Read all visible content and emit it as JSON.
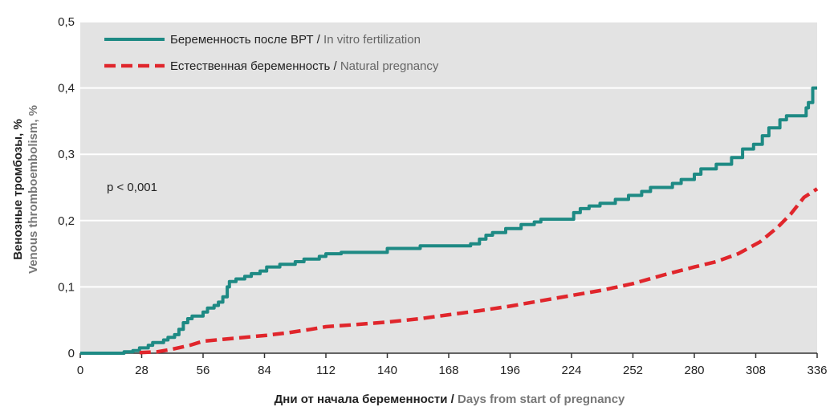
{
  "chart_data": {
    "type": "line",
    "title": "",
    "xlabel_ru": "Дни от начала беременности",
    "xlabel_sep": " / ",
    "xlabel_en": "Days from start of pregnancy",
    "ylabel_ru": "Венозные тромбозы, %",
    "ylabel_en": "Venous thromboembolism, %",
    "xlim": [
      0,
      336
    ],
    "ylim": [
      0,
      0.5
    ],
    "x_ticks": [
      "0",
      "28",
      "56",
      "84",
      "112",
      "140",
      "168",
      "196",
      "224",
      "252",
      "280",
      "308",
      "336"
    ],
    "y_ticks": [
      "0",
      "0,1",
      "0,2",
      "0,3",
      "0,4",
      "0,5"
    ],
    "grid": "horizontal",
    "background": "#e3e3e3",
    "legend_position": "top-left",
    "annotation": "p < 0,001",
    "series": [
      {
        "name_ru": "Беременность после ВРТ",
        "name_sep": " / ",
        "name_en": "In vitro fertilization",
        "color": "#1e8a84",
        "style": "solid",
        "step": true,
        "points": [
          [
            0,
            0
          ],
          [
            18,
            0
          ],
          [
            20,
            0.002
          ],
          [
            24,
            0.004
          ],
          [
            27,
            0.008
          ],
          [
            31,
            0.012
          ],
          [
            33,
            0.016
          ],
          [
            38,
            0.02
          ],
          [
            40,
            0.024
          ],
          [
            43,
            0.028
          ],
          [
            45,
            0.036
          ],
          [
            47,
            0.046
          ],
          [
            49,
            0.052
          ],
          [
            51,
            0.056
          ],
          [
            56,
            0.062
          ],
          [
            58,
            0.068
          ],
          [
            61,
            0.072
          ],
          [
            63,
            0.077
          ],
          [
            65,
            0.085
          ],
          [
            67,
            0.1
          ],
          [
            68,
            0.108
          ],
          [
            71,
            0.112
          ],
          [
            75,
            0.116
          ],
          [
            78,
            0.12
          ],
          [
            82,
            0.124
          ],
          [
            85,
            0.13
          ],
          [
            91,
            0.134
          ],
          [
            98,
            0.138
          ],
          [
            102,
            0.142
          ],
          [
            109,
            0.146
          ],
          [
            112,
            0.15
          ],
          [
            119,
            0.152
          ],
          [
            140,
            0.158
          ],
          [
            155,
            0.162
          ],
          [
            178,
            0.165
          ],
          [
            182,
            0.172
          ],
          [
            185,
            0.178
          ],
          [
            188,
            0.182
          ],
          [
            194,
            0.188
          ],
          [
            201,
            0.194
          ],
          [
            207,
            0.198
          ],
          [
            210,
            0.202
          ],
          [
            225,
            0.212
          ],
          [
            228,
            0.218
          ],
          [
            232,
            0.222
          ],
          [
            237,
            0.226
          ],
          [
            244,
            0.232
          ],
          [
            250,
            0.238
          ],
          [
            256,
            0.244
          ],
          [
            260,
            0.25
          ],
          [
            270,
            0.256
          ],
          [
            274,
            0.262
          ],
          [
            280,
            0.27
          ],
          [
            283,
            0.278
          ],
          [
            290,
            0.285
          ],
          [
            297,
            0.295
          ],
          [
            302,
            0.308
          ],
          [
            307,
            0.315
          ],
          [
            311,
            0.328
          ],
          [
            314,
            0.34
          ],
          [
            319,
            0.352
          ],
          [
            322,
            0.358
          ],
          [
            331,
            0.37
          ],
          [
            332,
            0.378
          ],
          [
            334,
            0.4
          ],
          [
            336,
            0.4
          ]
        ]
      },
      {
        "name_ru": "Естественная беременность",
        "name_sep": " / ",
        "name_en": "Natural pregnancy",
        "color": "#e0262c",
        "style": "dashed",
        "step": false,
        "points": [
          [
            27,
            0.001
          ],
          [
            35,
            0.002
          ],
          [
            42,
            0.006
          ],
          [
            50,
            0.012
          ],
          [
            56,
            0.018
          ],
          [
            65,
            0.021
          ],
          [
            75,
            0.024
          ],
          [
            85,
            0.027
          ],
          [
            95,
            0.031
          ],
          [
            105,
            0.036
          ],
          [
            112,
            0.04
          ],
          [
            125,
            0.043
          ],
          [
            140,
            0.047
          ],
          [
            155,
            0.052
          ],
          [
            168,
            0.058
          ],
          [
            182,
            0.064
          ],
          [
            196,
            0.071
          ],
          [
            210,
            0.079
          ],
          [
            224,
            0.087
          ],
          [
            238,
            0.095
          ],
          [
            252,
            0.105
          ],
          [
            266,
            0.118
          ],
          [
            280,
            0.13
          ],
          [
            290,
            0.138
          ],
          [
            300,
            0.15
          ],
          [
            310,
            0.168
          ],
          [
            318,
            0.19
          ],
          [
            324,
            0.21
          ],
          [
            330,
            0.235
          ],
          [
            336,
            0.248
          ]
        ]
      }
    ]
  }
}
